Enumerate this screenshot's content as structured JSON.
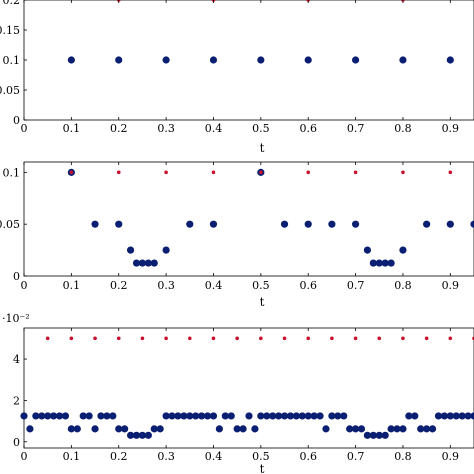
{
  "chart_data": [
    {
      "type": "scatter",
      "xlabel": "t",
      "ylabel": "",
      "xlim": [
        0,
        0.95
      ],
      "ylim": [
        0,
        0.2
      ],
      "xticks": [
        "0",
        "0.1",
        "0.2",
        "0.3",
        "0.4",
        "0.5",
        "0.6",
        "0.7",
        "0.8",
        "0.9"
      ],
      "yticks": [
        "0",
        "0.05",
        "0.1",
        "0.15",
        "0.2"
      ],
      "grid": false,
      "series": [
        {
          "color": "#0b1f72",
          "marker": "large-dot",
          "x": [
            0.1,
            0.2,
            0.3,
            0.4,
            0.5,
            0.6,
            0.7,
            0.8,
            0.9
          ],
          "y": [
            0.1,
            0.1,
            0.1,
            0.1,
            0.1,
            0.1,
            0.1,
            0.1,
            0.1
          ]
        },
        {
          "color": "#c8102e",
          "marker": "small-dot",
          "x": [
            0.2,
            0.4,
            0.6,
            0.8
          ],
          "y": [
            0.2,
            0.2,
            0.2,
            0.2
          ]
        }
      ]
    },
    {
      "type": "scatter",
      "xlabel": "t",
      "ylabel": "",
      "xlim": [
        0,
        0.95
      ],
      "ylim": [
        0,
        0.11
      ],
      "xticks": [
        "0",
        "0.1",
        "0.2",
        "0.3",
        "0.4",
        "0.5",
        "0.6",
        "0.7",
        "0.8",
        "0.9"
      ],
      "yticks": [
        "0",
        "0.05",
        "0.1"
      ],
      "grid": false,
      "series": [
        {
          "color": "#0b1f72",
          "marker": "large-dot",
          "x": [
            0.1,
            0.15,
            0.2,
            0.225,
            0.2375,
            0.25,
            0.2625,
            0.275,
            0.3,
            0.35,
            0.4,
            0.5,
            0.55,
            0.6,
            0.65,
            0.7,
            0.725,
            0.7375,
            0.75,
            0.7625,
            0.775,
            0.8,
            0.85,
            0.9,
            0.95
          ],
          "y": [
            0.1,
            0.05,
            0.05,
            0.025,
            0.0125,
            0.0125,
            0.0125,
            0.0125,
            0.025,
            0.05,
            0.05,
            0.1,
            0.05,
            0.05,
            0.05,
            0.05,
            0.025,
            0.0125,
            0.0125,
            0.0125,
            0.0125,
            0.025,
            0.05,
            0.05,
            0.05
          ]
        },
        {
          "color": "#c8102e",
          "marker": "small-dot",
          "x": [
            0.1,
            0.2,
            0.3,
            0.4,
            0.5,
            0.6,
            0.7,
            0.8,
            0.9
          ],
          "y": [
            0.1,
            0.1,
            0.1,
            0.1,
            0.1,
            0.1,
            0.1,
            0.1,
            0.1
          ]
        }
      ]
    },
    {
      "type": "scatter",
      "xlabel": "t",
      "ylabel": "",
      "scale_label": "·10⁻²",
      "xlim": [
        0,
        0.95
      ],
      "ylim": [
        -0.3,
        5.5
      ],
      "xticks": [
        "0",
        "0.1",
        "0.2",
        "0.3",
        "0.4",
        "0.5",
        "0.6",
        "0.7",
        "0.8",
        "0.9"
      ],
      "yticks": [
        "0",
        "2",
        "4"
      ],
      "grid": false,
      "series": [
        {
          "color": "#0b1f72",
          "marker": "large-dot",
          "x": [
            0.0,
            0.0125,
            0.025,
            0.0375,
            0.05,
            0.0625,
            0.075,
            0.0875,
            0.1,
            0.1125,
            0.125,
            0.1375,
            0.15,
            0.1625,
            0.175,
            0.1875,
            0.2,
            0.2125,
            0.225,
            0.2375,
            0.25,
            0.2625,
            0.275,
            0.2875,
            0.3,
            0.3125,
            0.325,
            0.3375,
            0.35,
            0.3625,
            0.375,
            0.3875,
            0.4,
            0.4125,
            0.425,
            0.4375,
            0.45,
            0.4625,
            0.475,
            0.4875,
            0.5,
            0.5125,
            0.525,
            0.5375,
            0.55,
            0.5625,
            0.575,
            0.5875,
            0.6,
            0.6125,
            0.625,
            0.6375,
            0.65,
            0.6625,
            0.675,
            0.6875,
            0.7,
            0.7125,
            0.725,
            0.7375,
            0.75,
            0.7625,
            0.775,
            0.7875,
            0.8,
            0.8125,
            0.825,
            0.8375,
            0.85,
            0.8625,
            0.875,
            0.8875,
            0.9,
            0.9125,
            0.925,
            0.9375,
            0.95
          ],
          "y": [
            1.25,
            0.625,
            1.25,
            1.25,
            1.25,
            1.25,
            1.25,
            1.25,
            0.625,
            0.625,
            1.25,
            1.25,
            0.625,
            1.25,
            1.25,
            1.25,
            0.625,
            0.625,
            0.3125,
            0.3125,
            0.3125,
            0.3125,
            0.625,
            0.625,
            1.25,
            1.25,
            1.25,
            1.25,
            1.25,
            1.25,
            1.25,
            1.25,
            1.25,
            0.625,
            1.25,
            1.25,
            0.625,
            0.625,
            1.25,
            0.625,
            1.25,
            1.25,
            1.25,
            1.25,
            1.25,
            1.25,
            1.25,
            1.25,
            1.25,
            1.25,
            1.25,
            0.625,
            1.25,
            1.25,
            1.25,
            0.625,
            0.625,
            0.625,
            0.3125,
            0.3125,
            0.3125,
            0.3125,
            0.625,
            0.625,
            0.625,
            1.25,
            1.25,
            0.625,
            0.625,
            0.625,
            1.25,
            1.25,
            1.25,
            1.25,
            1.25,
            1.25,
            1.25
          ]
        },
        {
          "color": "#c8102e",
          "marker": "small-dot",
          "x": [
            0.05,
            0.1,
            0.15,
            0.2,
            0.25,
            0.3,
            0.35,
            0.4,
            0.45,
            0.5,
            0.55,
            0.6,
            0.65,
            0.7,
            0.75,
            0.8,
            0.85,
            0.9,
            0.95
          ],
          "y": [
            5,
            5,
            5,
            5,
            5,
            5,
            5,
            5,
            5,
            5,
            5,
            5,
            5,
            5,
            5,
            5,
            5,
            5,
            5
          ]
        }
      ]
    }
  ]
}
